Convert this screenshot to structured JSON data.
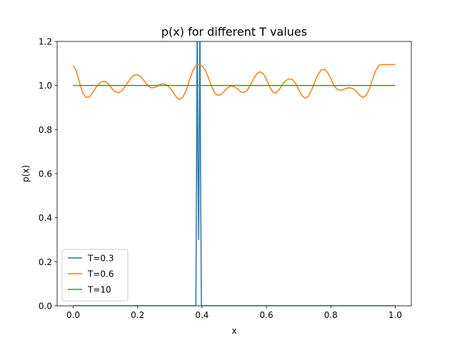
{
  "chart_data": {
    "type": "line",
    "title": "p(x) for different T values",
    "xlabel": "x",
    "ylabel": "p(x)",
    "xlim": [
      -0.05,
      1.05
    ],
    "ylim": [
      0.0,
      1.2
    ],
    "xticks": [
      0.0,
      0.2,
      0.4,
      0.6,
      0.8,
      1.0
    ],
    "xtick_labels": [
      "0.0",
      "0.2",
      "0.4",
      "0.6",
      "0.8",
      "1.0"
    ],
    "yticks": [
      0.0,
      0.2,
      0.4,
      0.6,
      0.8,
      1.0,
      1.2
    ],
    "ytick_labels": [
      "0.0",
      "0.2",
      "0.4",
      "0.6",
      "0.8",
      "1.0",
      "1.2"
    ],
    "grid": false,
    "legend_position": "lower-left",
    "series": [
      {
        "name": "T=0.3",
        "color": "#1f77b4",
        "points": [
          [
            0.0,
            0.0
          ],
          [
            0.381,
            0.0
          ],
          [
            0.383,
            0.6
          ],
          [
            0.385,
            1.3
          ],
          [
            0.387,
            0.7
          ],
          [
            0.3895,
            0.3
          ],
          [
            0.3915,
            0.8
          ],
          [
            0.3935,
            1.3
          ],
          [
            0.3955,
            0.6
          ],
          [
            0.398,
            0.0
          ],
          [
            1.0,
            0.0
          ]
        ]
      },
      {
        "name": "T=0.6",
        "color": "#ff7f0e",
        "points": [
          [
            0.0,
            1.09
          ],
          [
            0.01,
            1.065
          ],
          [
            0.02,
            1.01
          ],
          [
            0.03,
            0.965
          ],
          [
            0.04,
            0.946
          ],
          [
            0.05,
            0.948
          ],
          [
            0.06,
            0.966
          ],
          [
            0.07,
            0.99
          ],
          [
            0.08,
            1.008
          ],
          [
            0.09,
            1.018
          ],
          [
            0.1,
            1.018
          ],
          [
            0.11,
            1.006
          ],
          [
            0.12,
            0.987
          ],
          [
            0.13,
            0.972
          ],
          [
            0.14,
            0.967
          ],
          [
            0.15,
            0.975
          ],
          [
            0.16,
            0.993
          ],
          [
            0.17,
            1.015
          ],
          [
            0.18,
            1.035
          ],
          [
            0.19,
            1.047
          ],
          [
            0.2,
            1.048
          ],
          [
            0.21,
            1.04
          ],
          [
            0.22,
            1.022
          ],
          [
            0.23,
            1.003
          ],
          [
            0.24,
            0.99
          ],
          [
            0.25,
            0.99
          ],
          [
            0.26,
            0.997
          ],
          [
            0.27,
            1.005
          ],
          [
            0.28,
            1.008
          ],
          [
            0.29,
            1.003
          ],
          [
            0.3,
            0.99
          ],
          [
            0.31,
            0.97
          ],
          [
            0.32,
            0.948
          ],
          [
            0.33,
            0.937
          ],
          [
            0.34,
            0.945
          ],
          [
            0.35,
            0.975
          ],
          [
            0.36,
            1.02
          ],
          [
            0.37,
            1.062
          ],
          [
            0.38,
            1.087
          ],
          [
            0.39,
            1.095
          ],
          [
            0.4,
            1.09
          ],
          [
            0.41,
            1.07
          ],
          [
            0.42,
            1.035
          ],
          [
            0.43,
            0.995
          ],
          [
            0.44,
            0.965
          ],
          [
            0.45,
            0.955
          ],
          [
            0.46,
            0.96
          ],
          [
            0.47,
            0.975
          ],
          [
            0.48,
            0.99
          ],
          [
            0.49,
            0.997
          ],
          [
            0.5,
            0.995
          ],
          [
            0.51,
            0.985
          ],
          [
            0.52,
            0.972
          ],
          [
            0.53,
            0.968
          ],
          [
            0.54,
            0.978
          ],
          [
            0.55,
            1.002
          ],
          [
            0.56,
            1.03
          ],
          [
            0.57,
            1.053
          ],
          [
            0.58,
            1.062
          ],
          [
            0.59,
            1.055
          ],
          [
            0.6,
            1.03
          ],
          [
            0.61,
            0.995
          ],
          [
            0.62,
            0.97
          ],
          [
            0.63,
            0.965
          ],
          [
            0.64,
            0.982
          ],
          [
            0.65,
            1.005
          ],
          [
            0.66,
            1.022
          ],
          [
            0.67,
            1.03
          ],
          [
            0.68,
            1.028
          ],
          [
            0.69,
            1.01
          ],
          [
            0.7,
            0.983
          ],
          [
            0.71,
            0.955
          ],
          [
            0.72,
            0.942
          ],
          [
            0.73,
            0.95
          ],
          [
            0.74,
            0.978
          ],
          [
            0.75,
            1.015
          ],
          [
            0.76,
            1.05
          ],
          [
            0.77,
            1.07
          ],
          [
            0.78,
            1.074
          ],
          [
            0.79,
            1.06
          ],
          [
            0.8,
            1.032
          ],
          [
            0.81,
            1.0
          ],
          [
            0.82,
            0.982
          ],
          [
            0.83,
            0.978
          ],
          [
            0.84,
            0.982
          ],
          [
            0.85,
            0.988
          ],
          [
            0.86,
            0.99
          ],
          [
            0.87,
            0.985
          ],
          [
            0.88,
            0.972
          ],
          [
            0.89,
            0.955
          ],
          [
            0.9,
            0.946
          ],
          [
            0.91,
            0.955
          ],
          [
            0.92,
            0.985
          ],
          [
            0.93,
            1.03
          ],
          [
            0.94,
            1.07
          ],
          [
            0.95,
            1.092
          ],
          [
            0.96,
            1.095
          ],
          [
            1.0,
            1.095
          ]
        ]
      },
      {
        "name": "T=10",
        "color": "#2ca02c",
        "points": [
          [
            0.0,
            1.0
          ],
          [
            1.0,
            1.0
          ]
        ]
      }
    ]
  }
}
